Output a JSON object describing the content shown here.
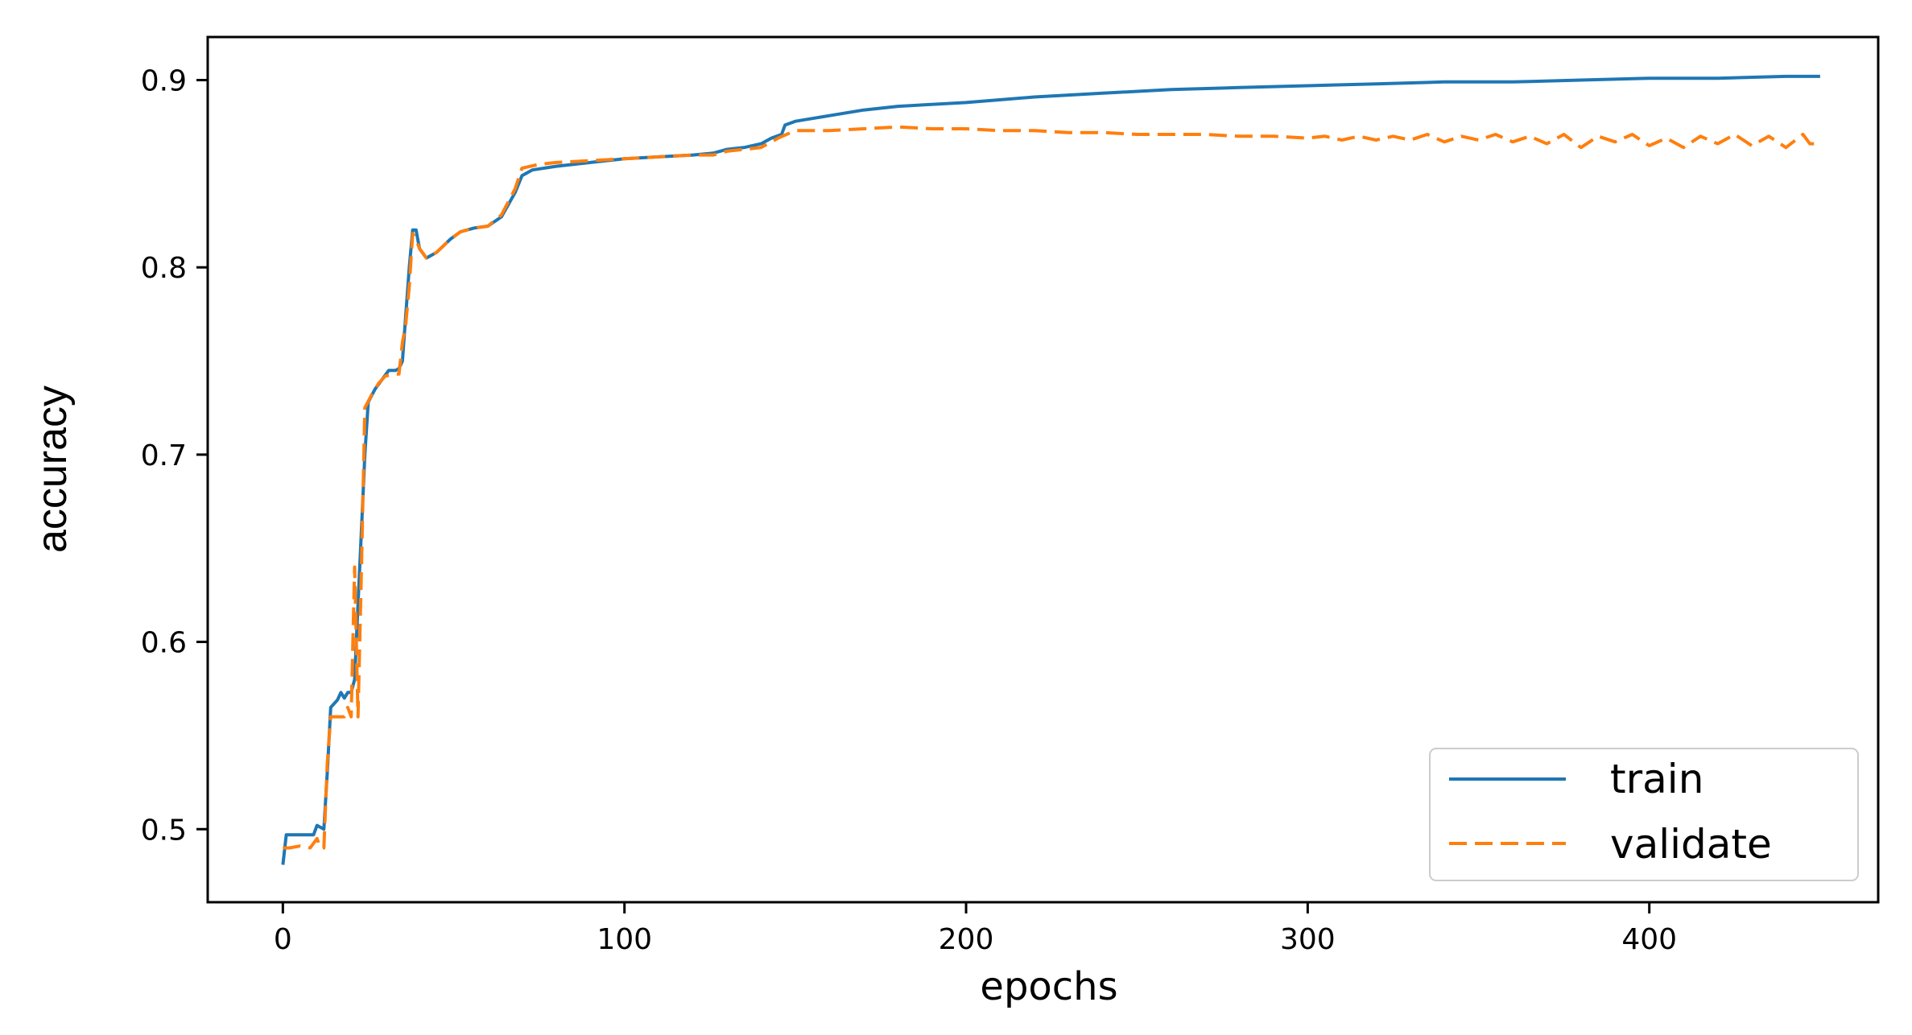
{
  "chart_data": {
    "type": "line",
    "xlabel": "epochs",
    "ylabel": "accuracy",
    "xlim": [
      -22,
      467
    ],
    "ylim": [
      0.461,
      0.923
    ],
    "xticks": [
      0,
      100,
      200,
      300,
      400
    ],
    "yticks": [
      0.5,
      0.6,
      0.7,
      0.8,
      0.9
    ],
    "xtick_labels": [
      "0",
      "100",
      "200",
      "300",
      "400"
    ],
    "ytick_labels": [
      "0.5",
      "0.6",
      "0.7",
      "0.8",
      "0.9"
    ],
    "grid": false,
    "legend_position": "lower right",
    "series": [
      {
        "name": "train",
        "color": "#1f77b4",
        "style": "solid",
        "points": [
          [
            0,
            0.481
          ],
          [
            1,
            0.497
          ],
          [
            5,
            0.497
          ],
          [
            9,
            0.497
          ],
          [
            10,
            0.502
          ],
          [
            12,
            0.5
          ],
          [
            13,
            0.53
          ],
          [
            14,
            0.565
          ],
          [
            16,
            0.569
          ],
          [
            17,
            0.573
          ],
          [
            18,
            0.57
          ],
          [
            19,
            0.573
          ],
          [
            20,
            0.573
          ],
          [
            21,
            0.58
          ],
          [
            22,
            0.62
          ],
          [
            23,
            0.66
          ],
          [
            24,
            0.7
          ],
          [
            25,
            0.728
          ],
          [
            27,
            0.735
          ],
          [
            29,
            0.74
          ],
          [
            31,
            0.745
          ],
          [
            33,
            0.745
          ],
          [
            34,
            0.746
          ],
          [
            35,
            0.75
          ],
          [
            36,
            0.775
          ],
          [
            37,
            0.8
          ],
          [
            38,
            0.82
          ],
          [
            39,
            0.82
          ],
          [
            40,
            0.81
          ],
          [
            42,
            0.805
          ],
          [
            45,
            0.808
          ],
          [
            49,
            0.815
          ],
          [
            52,
            0.819
          ],
          [
            56,
            0.821
          ],
          [
            60,
            0.822
          ],
          [
            64,
            0.827
          ],
          [
            68,
            0.84
          ],
          [
            70,
            0.849
          ],
          [
            73,
            0.852
          ],
          [
            80,
            0.854
          ],
          [
            90,
            0.856
          ],
          [
            100,
            0.858
          ],
          [
            110,
            0.859
          ],
          [
            120,
            0.86
          ],
          [
            126,
            0.861
          ],
          [
            130,
            0.863
          ],
          [
            135,
            0.864
          ],
          [
            140,
            0.866
          ],
          [
            143,
            0.869
          ],
          [
            146,
            0.871
          ],
          [
            147,
            0.876
          ],
          [
            150,
            0.878
          ],
          [
            160,
            0.881
          ],
          [
            170,
            0.884
          ],
          [
            180,
            0.886
          ],
          [
            200,
            0.888
          ],
          [
            220,
            0.891
          ],
          [
            240,
            0.893
          ],
          [
            260,
            0.895
          ],
          [
            280,
            0.896
          ],
          [
            300,
            0.897
          ],
          [
            320,
            0.898
          ],
          [
            340,
            0.899
          ],
          [
            360,
            0.899
          ],
          [
            380,
            0.9
          ],
          [
            400,
            0.901
          ],
          [
            420,
            0.901
          ],
          [
            440,
            0.902
          ],
          [
            450,
            0.902
          ]
        ]
      },
      {
        "name": "validate",
        "color": "#ff7f0e",
        "style": "dashed",
        "points": [
          [
            0,
            0.49
          ],
          [
            2,
            0.49
          ],
          [
            5,
            0.491
          ],
          [
            8,
            0.49
          ],
          [
            10,
            0.495
          ],
          [
            11,
            0.49
          ],
          [
            12,
            0.49
          ],
          [
            13,
            0.535
          ],
          [
            14,
            0.56
          ],
          [
            18,
            0.56
          ],
          [
            19,
            0.565
          ],
          [
            20,
            0.56
          ],
          [
            21,
            0.64
          ],
          [
            22,
            0.56
          ],
          [
            23,
            0.64
          ],
          [
            24,
            0.725
          ],
          [
            26,
            0.732
          ],
          [
            28,
            0.738
          ],
          [
            30,
            0.742
          ],
          [
            33,
            0.743
          ],
          [
            34,
            0.743
          ],
          [
            35,
            0.76
          ],
          [
            36,
            0.77
          ],
          [
            37,
            0.79
          ],
          [
            38,
            0.818
          ],
          [
            39,
            0.815
          ],
          [
            40,
            0.81
          ],
          [
            42,
            0.805
          ],
          [
            45,
            0.808
          ],
          [
            49,
            0.815
          ],
          [
            52,
            0.819
          ],
          [
            56,
            0.821
          ],
          [
            60,
            0.822
          ],
          [
            64,
            0.828
          ],
          [
            68,
            0.842
          ],
          [
            70,
            0.853
          ],
          [
            75,
            0.855
          ],
          [
            80,
            0.856
          ],
          [
            90,
            0.857
          ],
          [
            100,
            0.858
          ],
          [
            110,
            0.859
          ],
          [
            120,
            0.86
          ],
          [
            126,
            0.86
          ],
          [
            130,
            0.862
          ],
          [
            135,
            0.863
          ],
          [
            140,
            0.864
          ],
          [
            145,
            0.869
          ],
          [
            150,
            0.873
          ],
          [
            160,
            0.873
          ],
          [
            170,
            0.874
          ],
          [
            180,
            0.875
          ],
          [
            190,
            0.874
          ],
          [
            200,
            0.874
          ],
          [
            210,
            0.873
          ],
          [
            220,
            0.873
          ],
          [
            230,
            0.872
          ],
          [
            240,
            0.872
          ],
          [
            250,
            0.871
          ],
          [
            260,
            0.871
          ],
          [
            270,
            0.871
          ],
          [
            280,
            0.87
          ],
          [
            290,
            0.87
          ],
          [
            300,
            0.869
          ],
          [
            305,
            0.87
          ],
          [
            310,
            0.868
          ],
          [
            315,
            0.87
          ],
          [
            320,
            0.868
          ],
          [
            325,
            0.87
          ],
          [
            330,
            0.868
          ],
          [
            335,
            0.871
          ],
          [
            340,
            0.867
          ],
          [
            345,
            0.87
          ],
          [
            350,
            0.868
          ],
          [
            355,
            0.871
          ],
          [
            360,
            0.867
          ],
          [
            365,
            0.87
          ],
          [
            370,
            0.866
          ],
          [
            375,
            0.871
          ],
          [
            380,
            0.864
          ],
          [
            385,
            0.87
          ],
          [
            390,
            0.867
          ],
          [
            395,
            0.871
          ],
          [
            400,
            0.865
          ],
          [
            405,
            0.869
          ],
          [
            410,
            0.864
          ],
          [
            415,
            0.87
          ],
          [
            420,
            0.866
          ],
          [
            425,
            0.871
          ],
          [
            430,
            0.865
          ],
          [
            435,
            0.87
          ],
          [
            440,
            0.864
          ],
          [
            445,
            0.871
          ],
          [
            447,
            0.866
          ],
          [
            450,
            0.866
          ]
        ]
      }
    ]
  }
}
